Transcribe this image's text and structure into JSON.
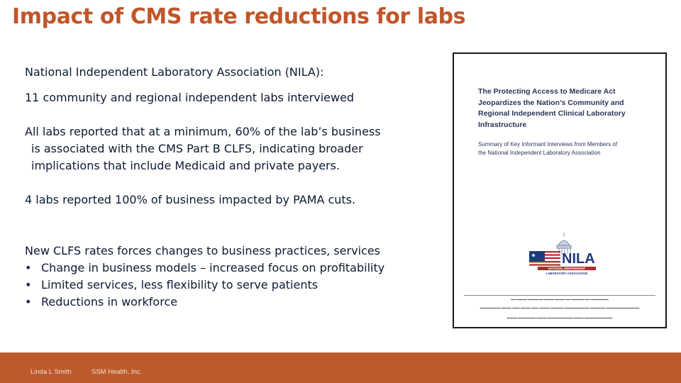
{
  "slide": {
    "title": "Impact of CMS rate reductions for labs",
    "paragraphs": {
      "p1": "National Independent Laboratory Association (NILA):",
      "p2": "11 community and regional independent labs interviewed",
      "p3_lines": [
        "All labs reported that at a minimum, 60% of the lab’s business",
        "is associated with the CMS Part B CLFS, indicating broader",
        "implications that include Medicaid and private payers."
      ],
      "p4": "4 labs reported 100% of business impacted by PAMA cuts.",
      "p5": "New CLFS rates forces changes to business practices, services",
      "bullets": [
        "Change in business models – increased focus on profitability",
        "Limited services, less flexibility to serve patients",
        "Reductions in workforce"
      ]
    },
    "document_thumbnail": {
      "title_lines": [
        "The Protecting Access to Medicare Act",
        "Jeopardizes the Nation’s Community and",
        "Regional Independent Clinical Laboratory",
        "Infrastructure"
      ],
      "subtitle_lines": [
        "Summary of Key Informant Interviews from Members of",
        "the National Independent Laboratory Association"
      ],
      "logo": {
        "wordmark": "NILA",
        "line1": "NATIONAL INDEPENDENT",
        "line2": "LABORATORY ASSOCIATION"
      }
    },
    "footer": {
      "author": "Linda L Smith",
      "organization": "SSM Health, Inc."
    },
    "colors": {
      "accent": "#c0562a",
      "footer_band": "#bd5a2c",
      "body_text": "#0b1a33",
      "doc_text": "#2a3656",
      "logo_red": "#b22a2a",
      "logo_blue": "#1f3a7a"
    }
  }
}
